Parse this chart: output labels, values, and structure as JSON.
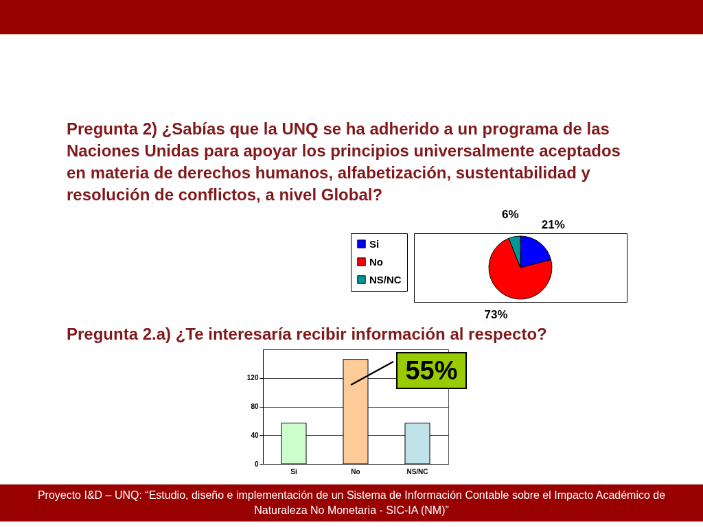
{
  "chart_data": [
    {
      "type": "pie",
      "title": "Pregunta 2) ¿Sabías que la UNQ se ha adherido a un programa de las Naciones Unidas para apoyar los principios universalmente aceptados en materia de derechos humanos, alfabetización, sustentabilidad y resolución de conflictos, a nivel Global?",
      "categories": [
        "Si",
        "No",
        "NS/NC"
      ],
      "values": [
        21,
        73,
        6
      ],
      "colors": [
        "#0000ff",
        "#ff0000",
        "#009999"
      ],
      "value_labels": [
        "21%",
        "73%",
        "6%"
      ],
      "legend": "left"
    },
    {
      "type": "bar",
      "title": "Pregunta 2.a) ¿Te interesaría recibir información al respecto?",
      "categories": [
        "Si",
        "No",
        "NS/NC"
      ],
      "values": [
        57,
        146,
        57
      ],
      "colors": [
        "#ccffcc",
        "#ffcc99",
        "#bfe3e8"
      ],
      "ylim": [
        0,
        160
      ],
      "yticks": [
        0,
        40,
        80,
        120
      ],
      "grid": "y",
      "annotations": [
        "55%",
        "Proyecto I&D – UNQ: “Estudio, diseño e implementación de un Sistema de Información Contable sobre el Impacto Académico de Naturaleza No Monetaria - SIC-IA (NM)”"
      ]
    }
  ]
}
